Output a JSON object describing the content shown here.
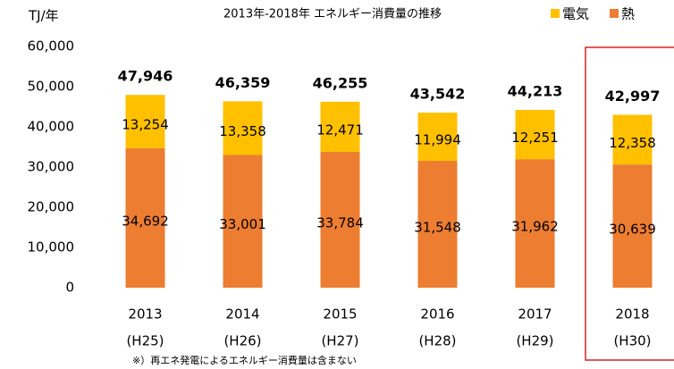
{
  "chart_data": {
    "type": "stacked-bar",
    "title": "2013年-2018年 エネルギー消費量の推移",
    "y_axis_label": "TJ/年",
    "note": "※）再エネ発電によるエネルギー消費量は含まない",
    "categories": [
      "2013",
      "2014",
      "2015",
      "2016",
      "2017",
      "2018"
    ],
    "category_eras": [
      "(H25)",
      "(H26)",
      "(H27)",
      "(H28)",
      "(H29)",
      "(H30)"
    ],
    "series": [
      {
        "name": "熱",
        "color": "#ED7D31",
        "values": [
          34692,
          33001,
          33784,
          31548,
          31962,
          30639
        ],
        "value_labels": [
          "34,692",
          "33,001",
          "33,784",
          "31,548",
          "31,962",
          "30,639"
        ]
      },
      {
        "name": "電気",
        "color": "#FFC000",
        "values": [
          13254,
          13358,
          12471,
          11994,
          12251,
          12358
        ],
        "value_labels": [
          "13,254",
          "13,358",
          "12,471",
          "11,994",
          "12,251",
          "12,358"
        ]
      }
    ],
    "totals": [
      47946,
      46359,
      46255,
      43542,
      44213,
      42997
    ],
    "total_labels": [
      "47,946",
      "46,359",
      "46,255",
      "43,542",
      "44,213",
      "42,997"
    ],
    "ylim": [
      0,
      60000
    ],
    "yticks": [
      0,
      {
        "value": 10000,
        "label": "10,000"
      },
      {
        "value": 20000,
        "label": "20,000"
      },
      {
        "value": 30000,
        "label": "30,000"
      },
      {
        "value": 40000,
        "label": "40,000"
      },
      {
        "value": 50000,
        "label": "50,000"
      },
      {
        "value": 60000,
        "label": "60,000"
      }
    ],
    "legend_position": "top-right",
    "highlight_color": "#E02020"
  }
}
